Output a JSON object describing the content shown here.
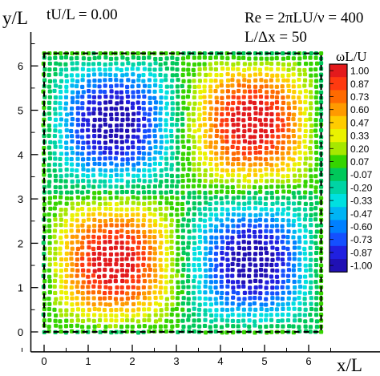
{
  "chart_data": {
    "type": "scatter",
    "subtype": "particle-vorticity-field",
    "annotations": {
      "time": "tU/L = 0.00",
      "reynolds": "Re = 2πLU/ν = 400",
      "resolution": "L/Δx = 50"
    },
    "xlabel": "x/L",
    "ylabel": "y/L",
    "xlim": [
      -0.3,
      6.9
    ],
    "ylim": [
      -0.45,
      6.9
    ],
    "xticks": [
      "0",
      "1",
      "2",
      "3",
      "4",
      "5",
      "6"
    ],
    "yticks": [
      "0",
      "1",
      "2",
      "3",
      "4",
      "5",
      "6"
    ],
    "domain_box": {
      "x": [
        0,
        6.2832
      ],
      "y": [
        0,
        6.2832
      ],
      "style": "dashed"
    },
    "field": {
      "formula": "omega = sin(x) * sin(y)",
      "grid_spacing": 0.126,
      "note": "particles on a jittered lattice, colored by vorticity"
    },
    "colorbar": {
      "title": "ωL/U",
      "range": [
        -1.0,
        1.0
      ],
      "levels": [
        "1.000",
        "0.867",
        "0.733",
        "0.600",
        "0.467",
        "0.333",
        "0.200",
        "0.067",
        "-0.067",
        "-0.200",
        "-0.333",
        "-0.467",
        "-0.600",
        "-0.733",
        "-0.867",
        "-1.000"
      ],
      "tick_labels": [
        "1.00",
        "0.87",
        "0.73",
        "0.60",
        "0.47",
        "0.33",
        "0.20",
        "0.07",
        "-0.07",
        "-0.20",
        "-0.33",
        "-0.47",
        "-0.60",
        "-0.73",
        "-0.87",
        "-1.00"
      ],
      "colors": [
        "#e31a1c",
        "#ff3a10",
        "#ff6a00",
        "#ff9a00",
        "#ffcc00",
        "#eaf200",
        "#a6e800",
        "#35d400",
        "#00c85a",
        "#00d4a4",
        "#00e0e0",
        "#00b4f4",
        "#0080ff",
        "#1450ff",
        "#2020e0",
        "#2010b4"
      ]
    }
  }
}
